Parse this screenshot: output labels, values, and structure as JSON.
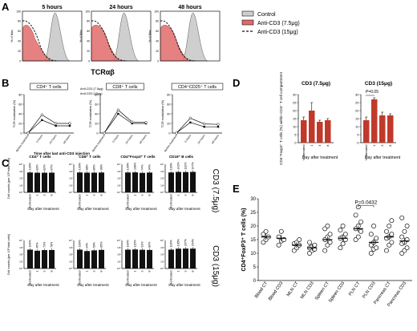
{
  "figure": {
    "panels": [
      "A",
      "B",
      "C",
      "D",
      "E"
    ]
  },
  "panel_a": {
    "times": [
      "5 hours",
      "24 hours",
      "48 hours"
    ],
    "ylabel": "% of Max",
    "xlabel": "TCRαβ",
    "legend": [
      "Control",
      "Anti-CD3 (7.5μg)",
      "Anti-CD3 (15μg)"
    ],
    "colors": {
      "control": "#cfcfcf",
      "cd3_75": "#e06b6b",
      "cd3_15": "#111111"
    }
  },
  "panel_b": {
    "ylabel": "TCR modulation (%)",
    "xlabel": "Time after last anti-CD3 injection",
    "subtitles": [
      "CD4⁺ T cells",
      "CD8⁺ T cells",
      "CD4⁺CD25⁺ T cells"
    ],
    "categories": [
      "Before treatment",
      "5 hours",
      "24 hours",
      "48 hours"
    ],
    "yticks": [
      "0",
      "20",
      "40",
      "60",
      "80"
    ],
    "legend": [
      "Anti-CD3 (7.5μg)",
      "Anti-CD3 (15μg)"
    ]
  },
  "panel_c": {
    "ylabel": "Cell counts (per 10⁸ total cells)",
    "xlabel": "Day after treatment",
    "columns": [
      "CD4⁺ T cells",
      "CD8⁺ T cells",
      "CD4⁺Foxp3⁺ T cells",
      "CD19⁺ B cells"
    ],
    "categories": [
      "Nontreated",
      "1",
      "3",
      "8"
    ],
    "row_labels": [
      "CD3 (7.5μg)",
      "CD3 (15μg)"
    ],
    "row1_pct": [
      [
        "100%",
        "83%",
        "82%",
        "87%"
      ],
      [
        "100%",
        "88%",
        "86%",
        "96%"
      ],
      [
        "100%",
        "108%",
        "74%",
        "94%"
      ],
      [
        "100%",
        "142%",
        "132%",
        "147%"
      ]
    ],
    "row2_pct": [
      [
        "100%",
        "45%",
        "73%",
        "78%"
      ],
      [
        "100%",
        "34%",
        "59%",
        "85%"
      ],
      [
        "100%",
        "115%",
        "91%",
        "80%"
      ],
      [
        "100%",
        "195%",
        "207%",
        "204%"
      ]
    ]
  },
  "panel_d": {
    "ylabel": "CD4⁺Foxp3⁺ T cells (%) within CD4⁺ T cell compartment",
    "xlabel": "Day after treatment",
    "titles": [
      "CD3 (7.5μg)",
      "CD3 (15μg)"
    ],
    "categories": [
      "Nontreated",
      "1",
      "3",
      "8"
    ],
    "annotation": "P=0.05",
    "yticks": [
      "0",
      "5",
      "10",
      "15",
      "20",
      "25",
      "30"
    ]
  },
  "panel_e": {
    "ylabel": "CD4⁺FoxP3⁺ T cells (%)",
    "annotation": "P=0.0432",
    "categories": [
      "Blood CT",
      "Blood CD3",
      "MLN CT",
      "MLN CD3",
      "Spleen CT",
      "Spleen CD3",
      "PLN CT",
      "PLN CD3",
      "Pancreas CT",
      "Pancreas CD3"
    ],
    "yticks": [
      "0",
      "5",
      "10",
      "15",
      "20",
      "25",
      "30"
    ]
  },
  "chart_data": [
    {
      "type": "line",
      "title": "CD4⁺ T cells",
      "categories": [
        "Before treatment",
        "5 hours",
        "24 hours",
        "48 hours"
      ],
      "ylabel": "TCR modulation (%)",
      "ylim": [
        0,
        80
      ],
      "series": [
        {
          "name": "Anti-CD3 (7.5μg)",
          "values": [
            0,
            27,
            15,
            15
          ]
        },
        {
          "name": "Anti-CD3 (15μg)",
          "values": [
            0,
            38,
            20,
            20
          ]
        }
      ]
    },
    {
      "type": "line",
      "title": "CD8⁺ T cells",
      "categories": [
        "Before treatment",
        "5 hours",
        "24 hours",
        "48 hours"
      ],
      "ylabel": "TCR modulation (%)",
      "ylim": [
        0,
        80
      ],
      "series": [
        {
          "name": "Anti-CD3 (7.5μg)",
          "values": [
            0,
            40,
            20,
            20
          ]
        },
        {
          "name": "Anti-CD3 (15μg)",
          "values": [
            0,
            48,
            23,
            22
          ]
        }
      ]
    },
    {
      "type": "line",
      "title": "CD4⁺CD25⁺ T cells",
      "categories": [
        "Before treatment",
        "5 hours",
        "24 hours",
        "48 hours"
      ],
      "ylabel": "TCR modulation (%)",
      "ylim": [
        0,
        80
      ],
      "series": [
        {
          "name": "Anti-CD3 (7.5μg)",
          "values": [
            0,
            22,
            13,
            13
          ]
        },
        {
          "name": "Anti-CD3 (15μg)",
          "values": [
            0,
            31,
            19,
            18
          ]
        }
      ]
    },
    {
      "type": "bar",
      "title": "CD3 (7.5μg)",
      "categories": [
        "Nontreated",
        "1",
        "3",
        "8"
      ],
      "values": [
        14,
        20,
        13,
        14
      ],
      "errors": [
        2,
        5,
        1,
        1
      ],
      "ylim": [
        0,
        30
      ]
    },
    {
      "type": "bar",
      "title": "CD3 (15μg)",
      "categories": [
        "Nontreated",
        "1",
        "3",
        "8"
      ],
      "values": [
        14,
        27,
        17,
        17
      ],
      "errors": [
        2,
        1,
        2,
        1
      ],
      "ylim": [
        0,
        30
      ]
    },
    {
      "type": "scatter",
      "categories": [
        "Blood CT",
        "Blood CD3",
        "MLN CT",
        "MLN CD3",
        "Spleen CT",
        "Spleen CD3",
        "PLN CT",
        "PLN CD3",
        "Pancreas CT",
        "Pancreas CD3"
      ],
      "means": [
        16,
        15.5,
        13,
        12,
        15,
        15.5,
        19,
        14,
        16,
        14.5
      ],
      "ylim": [
        0,
        30
      ],
      "points": [
        [
          14,
          15,
          16,
          17,
          18
        ],
        [
          13,
          14.5,
          15,
          16,
          18
        ],
        [
          11,
          12,
          13,
          13.5,
          14,
          15
        ],
        [
          10,
          11,
          11.5,
          12,
          12.5,
          13,
          14
        ],
        [
          11,
          13,
          14,
          15,
          16,
          17,
          19,
          20
        ],
        [
          12,
          13.5,
          15,
          15.5,
          16,
          17,
          18.5,
          20
        ],
        [
          15,
          16,
          18,
          19,
          20,
          21.5,
          24,
          27
        ],
        [
          10,
          11.5,
          12,
          13,
          14,
          15.5,
          17,
          20
        ],
        [
          11,
          13,
          14,
          15.5,
          16,
          17,
          18,
          20,
          22
        ],
        [
          10,
          11,
          12,
          13.5,
          14,
          15,
          16,
          18,
          20,
          23
        ]
      ]
    }
  ]
}
